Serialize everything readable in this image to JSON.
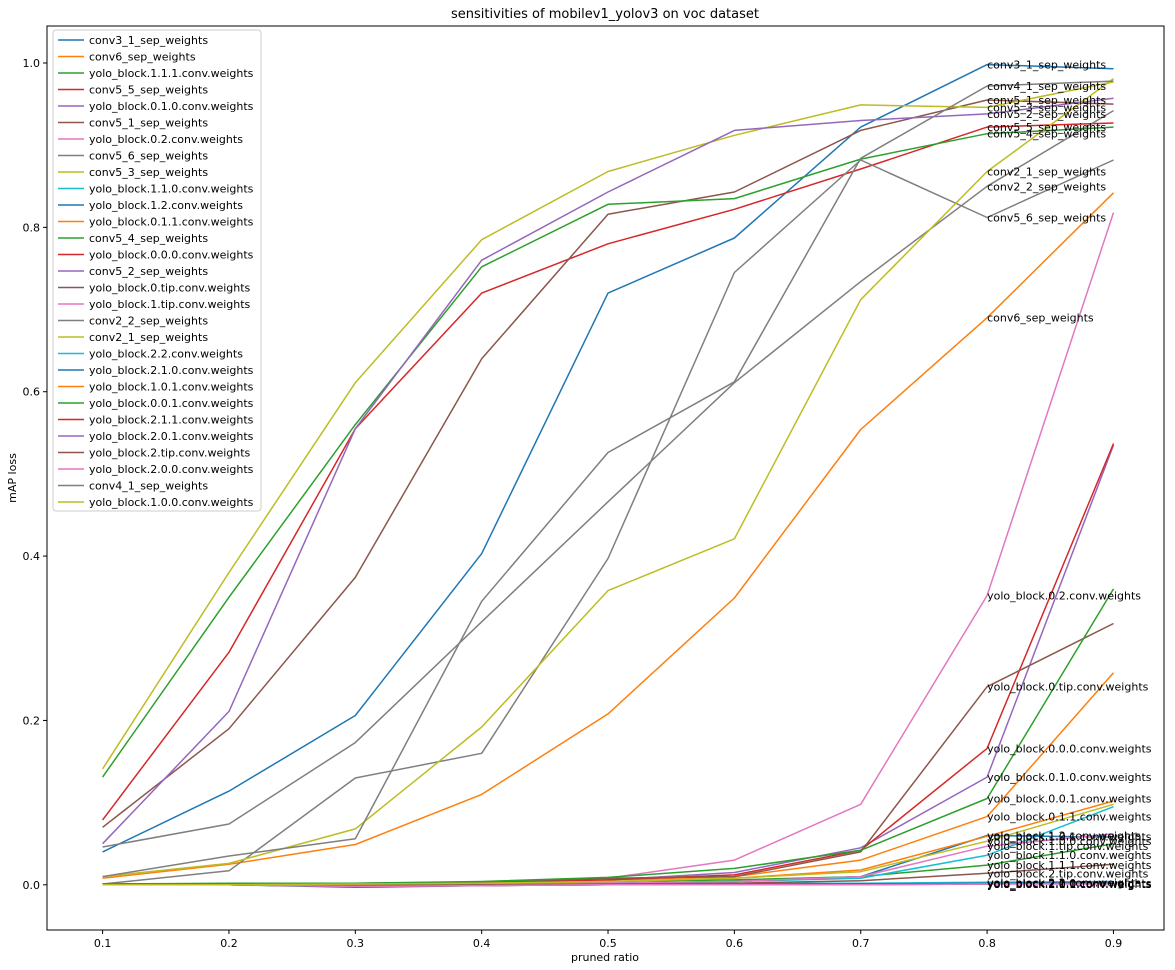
{
  "chart_data": {
    "type": "line",
    "title": "sensitivities of mobilev1_yolov3 on voc dataset",
    "xlabel": "pruned ratio",
    "ylabel": "mAP loss",
    "x": [
      0.1,
      0.2,
      0.3,
      0.4,
      0.5,
      0.6,
      0.7,
      0.8,
      0.9
    ],
    "x_ticks": [
      "0.1",
      "0.2",
      "0.3",
      "0.4",
      "0.5",
      "0.6",
      "0.7",
      "0.8",
      "0.9"
    ],
    "y_ticks": [
      "0.0",
      "0.2",
      "0.4",
      "0.6",
      "0.8",
      "1.0"
    ],
    "xlim": [
      0.056,
      0.94
    ],
    "ylim": [
      -0.055,
      1.045
    ],
    "legend_position": "upper-left",
    "grid": false,
    "series": [
      {
        "name": "conv3_1_sep_weights",
        "color": "#1f77b4",
        "values": [
          0.04,
          0.114,
          0.206,
          0.403,
          0.72,
          0.787,
          0.922,
          0.998,
          0.993
        ],
        "end_label": "conv3_1_sep_weights"
      },
      {
        "name": "conv6_sep_weights",
        "color": "#ff7f0e",
        "values": [
          0.008,
          0.025,
          0.049,
          0.11,
          0.208,
          0.349,
          0.554,
          0.69,
          0.842
        ],
        "end_label": "conv6_sep_weights"
      },
      {
        "name": "yolo_block.1.1.1.conv.weights",
        "color": "#2ca02c",
        "values": [
          0.0,
          0.001,
          0.001,
          0.002,
          0.004,
          0.006,
          0.01,
          0.024,
          0.05
        ],
        "end_label": "yolo_block.1.1.1.conv.weights"
      },
      {
        "name": "conv5_5_sep_weights",
        "color": "#d62728",
        "values": [
          0.079,
          0.283,
          0.555,
          0.72,
          0.78,
          0.822,
          0.871,
          0.922,
          0.927
        ],
        "end_label": "conv5_5_sep_weights"
      },
      {
        "name": "yolo_block.0.1.0.conv.weights",
        "color": "#9467bd",
        "values": [
          0.001,
          0.001,
          0.001,
          0.002,
          0.006,
          0.015,
          0.045,
          0.131,
          0.535
        ],
        "end_label": "yolo_block.0.1.0.conv.weights"
      },
      {
        "name": "conv5_1_sep_weights",
        "color": "#8c564b",
        "values": [
          0.07,
          0.19,
          0.374,
          0.64,
          0.816,
          0.843,
          0.918,
          0.955,
          0.95
        ],
        "end_label": "conv5_1_sep_weights"
      },
      {
        "name": "yolo_block.0.2.conv.weights",
        "color": "#e377c2",
        "values": [
          0.001,
          0.001,
          0.001,
          0.003,
          0.008,
          0.03,
          0.098,
          0.352,
          0.818
        ],
        "end_label": "yolo_block.0.2.conv.weights"
      },
      {
        "name": "conv5_6_sep_weights",
        "color": "#7f7f7f",
        "values": [
          0.001,
          0.017,
          0.13,
          0.16,
          0.397,
          0.745,
          0.882,
          0.812,
          0.882
        ],
        "end_label": "conv5_6_sep_weights"
      },
      {
        "name": "conv5_3_sep_weights",
        "color": "#bcbd22",
        "values": [
          0.141,
          0.38,
          0.611,
          0.785,
          0.868,
          0.912,
          0.949,
          0.946,
          0.977
        ],
        "end_label": "conv5_3_sep_weights"
      },
      {
        "name": "yolo_block.1.1.0.conv.weights",
        "color": "#17becf",
        "values": [
          0.0,
          0.0,
          0.001,
          0.001,
          0.002,
          0.004,
          0.008,
          0.036,
          0.095
        ],
        "end_label": "yolo_block.1.1.0.conv.weights"
      },
      {
        "name": "yolo_block.1.2.conv.weights",
        "color": "#1f77b4",
        "values": [
          0.0,
          0.0,
          0.0,
          0.001,
          0.002,
          0.004,
          0.01,
          0.06,
          0.058
        ],
        "end_label": "yolo_block.1.2.conv.weights"
      },
      {
        "name": "yolo_block.0.1.1.conv.weights",
        "color": "#ff7f0e",
        "values": [
          0.001,
          0.001,
          0.001,
          0.003,
          0.006,
          0.01,
          0.03,
          0.083,
          0.258
        ],
        "end_label": "yolo_block.0.1.1.conv.weights"
      },
      {
        "name": "conv5_4_sep_weights",
        "color": "#2ca02c",
        "values": [
          0.131,
          0.35,
          0.56,
          0.752,
          0.828,
          0.835,
          0.883,
          0.914,
          0.922
        ],
        "end_label": "conv5_4_sep_weights"
      },
      {
        "name": "yolo_block.0.0.0.conv.weights",
        "color": "#d62728",
        "values": [
          0.001,
          0.001,
          0.001,
          0.003,
          0.006,
          0.012,
          0.042,
          0.166,
          0.537
        ],
        "end_label": "yolo_block.0.0.0.conv.weights"
      },
      {
        "name": "conv5_2_sep_weights",
        "color": "#9467bd",
        "values": [
          0.05,
          0.211,
          0.555,
          0.76,
          0.843,
          0.918,
          0.93,
          0.938,
          0.957
        ],
        "end_label": "conv5_2_sep_weights"
      },
      {
        "name": "yolo_block.0.tip.conv.weights",
        "color": "#8c564b",
        "values": [
          0.001,
          0.001,
          0.002,
          0.003,
          0.008,
          0.01,
          0.04,
          0.241,
          0.318
        ],
        "end_label": "yolo_block.0.tip.conv.weights"
      },
      {
        "name": "yolo_block.1.tip.conv.weights",
        "color": "#e377c2",
        "values": [
          0.0,
          0.0,
          0.0,
          0.001,
          0.002,
          0.004,
          0.01,
          0.047,
          0.062
        ],
        "end_label": "yolo_block.1.tip.conv.weights"
      },
      {
        "name": "conv2_2_sep_weights",
        "color": "#7f7f7f",
        "values": [
          0.046,
          0.074,
          0.173,
          0.32,
          0.466,
          0.611,
          0.734,
          0.85,
          0.942
        ],
        "end_label": "conv2_2_sep_weights"
      },
      {
        "name": "conv2_1_sep_weights",
        "color": "#bcbd22",
        "values": [
          0.01,
          0.026,
          0.068,
          0.192,
          0.358,
          0.421,
          0.712,
          0.868,
          0.981
        ],
        "end_label": "conv2_1_sep_weights"
      },
      {
        "name": "yolo_block.2.2.conv.weights",
        "color": "#17becf",
        "values": [
          0.0,
          0.0,
          -0.002,
          0.0,
          0.001,
          0.002,
          0.002,
          0.003,
          0.004
        ],
        "end_label": "yolo_block.2.2.conv.weights"
      },
      {
        "name": "yolo_block.2.1.0.conv.weights",
        "color": "#1f77b4",
        "values": [
          0.0,
          0.0,
          -0.003,
          -0.001,
          0.0,
          0.001,
          0.001,
          0.002,
          0.003
        ],
        "end_label": "yolo_block.2.1.0.conv.weights"
      },
      {
        "name": "yolo_block.1.0.1.conv.weights",
        "color": "#ff7f0e",
        "values": [
          0.0,
          0.0,
          0.001,
          0.002,
          0.004,
          0.008,
          0.018,
          0.059,
          0.102
        ],
        "end_label": "yolo_block.1.0.1.conv.weights"
      },
      {
        "name": "yolo_block.0.0.1.conv.weights",
        "color": "#2ca02c",
        "values": [
          0.001,
          0.002,
          0.002,
          0.004,
          0.009,
          0.02,
          0.042,
          0.105,
          0.36
        ],
        "end_label": "yolo_block.0.0.1.conv.weights"
      },
      {
        "name": "yolo_block.2.1.1.conv.weights",
        "color": "#d62728",
        "values": [
          0.0,
          0.0,
          -0.002,
          -0.001,
          0.0,
          0.0,
          0.001,
          0.001,
          0.002
        ],
        "end_label": "yolo_block.2.1.1.conv.weights"
      },
      {
        "name": "yolo_block.2.0.1.conv.weights",
        "color": "#9467bd",
        "values": [
          0.0,
          0.0,
          -0.002,
          -0.001,
          0.0,
          0.0,
          0.0,
          0.001,
          0.002
        ],
        "end_label": "yolo_block.2.0.1.conv.weights"
      },
      {
        "name": "yolo_block.2.tip.conv.weights",
        "color": "#8c564b",
        "values": [
          0.0,
          0.0,
          -0.001,
          0.0,
          0.001,
          0.002,
          0.005,
          0.014,
          0.025
        ],
        "end_label": "yolo_block.2.tip.conv.weights"
      },
      {
        "name": "yolo_block.2.0.0.conv.weights",
        "color": "#e377c2",
        "values": [
          0.0,
          0.0,
          -0.002,
          -0.001,
          0.0,
          0.0,
          0.0,
          0.001,
          0.001
        ],
        "end_label": "yolo_block.2.0.0.conv.weights"
      },
      {
        "name": "conv4_1_sep_weights",
        "color": "#7f7f7f",
        "values": [
          0.01,
          0.035,
          0.056,
          0.345,
          0.526,
          0.612,
          0.884,
          0.972,
          0.978
        ],
        "end_label": "conv4_1_sep_weights"
      },
      {
        "name": "yolo_block.1.0.0.conv.weights",
        "color": "#bcbd22",
        "values": [
          0.0,
          0.0,
          0.001,
          0.002,
          0.004,
          0.008,
          0.016,
          0.053,
          0.098
        ],
        "end_label": "yolo_block.1.0.0.conv.weights"
      }
    ]
  }
}
